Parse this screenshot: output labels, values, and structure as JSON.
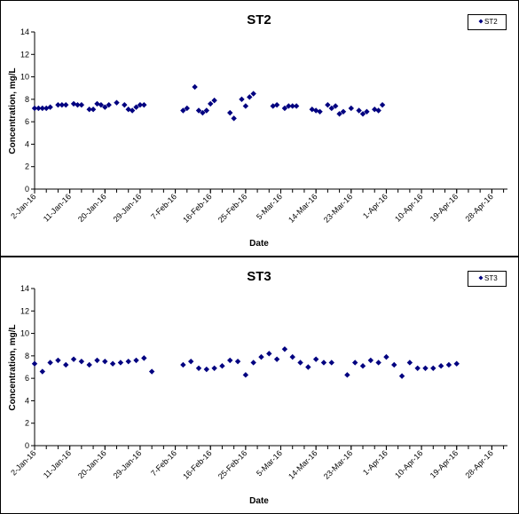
{
  "chart_data": [
    {
      "type": "scatter",
      "title": "ST2",
      "xlabel": "Date",
      "ylabel": "Concentration, mg/L",
      "ylim": [
        0,
        14
      ],
      "yticks": [
        0,
        2,
        4,
        6,
        8,
        10,
        12,
        14
      ],
      "xlim": [
        "2016-01-02",
        "2016-05-02"
      ],
      "xtick_labels": [
        "2-Jan-16",
        "11-Jan-16",
        "20-Jan-16",
        "29-Jan-16",
        "7-Feb-16",
        "16-Feb-16",
        "25-Feb-16",
        "5-Mar-16",
        "14-Mar-16",
        "23-Mar-16",
        "1-Apr-16",
        "10-Apr-16",
        "19-Apr-16",
        "28-Apr-16"
      ],
      "xtick_dates": [
        "2016-01-02",
        "2016-01-11",
        "2016-01-20",
        "2016-01-29",
        "2016-02-07",
        "2016-02-16",
        "2016-02-25",
        "2016-03-05",
        "2016-03-14",
        "2016-03-23",
        "2016-04-01",
        "2016-04-10",
        "2016-04-19",
        "2016-04-28"
      ],
      "grid": false,
      "legend": "top-right",
      "series": [
        {
          "name": "ST2",
          "color": "#000080",
          "marker": "diamond",
          "points": [
            {
              "x": "2016-01-02",
              "y": 7.2
            },
            {
              "x": "2016-01-03",
              "y": 7.2
            },
            {
              "x": "2016-01-04",
              "y": 7.2
            },
            {
              "x": "2016-01-05",
              "y": 7.2
            },
            {
              "x": "2016-01-06",
              "y": 7.3
            },
            {
              "x": "2016-01-08",
              "y": 7.5
            },
            {
              "x": "2016-01-09",
              "y": 7.5
            },
            {
              "x": "2016-01-10",
              "y": 7.5
            },
            {
              "x": "2016-01-12",
              "y": 7.6
            },
            {
              "x": "2016-01-13",
              "y": 7.5
            },
            {
              "x": "2016-01-14",
              "y": 7.5
            },
            {
              "x": "2016-01-16",
              "y": 7.1
            },
            {
              "x": "2016-01-17",
              "y": 7.1
            },
            {
              "x": "2016-01-18",
              "y": 7.6
            },
            {
              "x": "2016-01-19",
              "y": 7.5
            },
            {
              "x": "2016-01-20",
              "y": 7.3
            },
            {
              "x": "2016-01-21",
              "y": 7.5
            },
            {
              "x": "2016-01-23",
              "y": 7.7
            },
            {
              "x": "2016-01-25",
              "y": 7.5
            },
            {
              "x": "2016-01-26",
              "y": 7.1
            },
            {
              "x": "2016-01-27",
              "y": 7.0
            },
            {
              "x": "2016-01-28",
              "y": 7.3
            },
            {
              "x": "2016-01-29",
              "y": 7.5
            },
            {
              "x": "2016-01-30",
              "y": 7.5
            },
            {
              "x": "2016-02-09",
              "y": 7.0
            },
            {
              "x": "2016-02-10",
              "y": 7.2
            },
            {
              "x": "2016-02-12",
              "y": 9.1
            },
            {
              "x": "2016-02-13",
              "y": 7.0
            },
            {
              "x": "2016-02-14",
              "y": 6.8
            },
            {
              "x": "2016-02-15",
              "y": 7.0
            },
            {
              "x": "2016-02-16",
              "y": 7.6
            },
            {
              "x": "2016-02-17",
              "y": 7.9
            },
            {
              "x": "2016-02-21",
              "y": 6.8
            },
            {
              "x": "2016-02-22",
              "y": 6.3
            },
            {
              "x": "2016-02-24",
              "y": 8.0
            },
            {
              "x": "2016-02-25",
              "y": 7.4
            },
            {
              "x": "2016-02-26",
              "y": 8.2
            },
            {
              "x": "2016-02-27",
              "y": 8.5
            },
            {
              "x": "2016-03-03",
              "y": 7.4
            },
            {
              "x": "2016-03-04",
              "y": 7.5
            },
            {
              "x": "2016-03-06",
              "y": 7.2
            },
            {
              "x": "2016-03-07",
              "y": 7.4
            },
            {
              "x": "2016-03-08",
              "y": 7.4
            },
            {
              "x": "2016-03-09",
              "y": 7.4
            },
            {
              "x": "2016-03-13",
              "y": 7.1
            },
            {
              "x": "2016-03-14",
              "y": 7.0
            },
            {
              "x": "2016-03-15",
              "y": 6.9
            },
            {
              "x": "2016-03-17",
              "y": 7.5
            },
            {
              "x": "2016-03-18",
              "y": 7.2
            },
            {
              "x": "2016-03-19",
              "y": 7.4
            },
            {
              "x": "2016-03-20",
              "y": 6.7
            },
            {
              "x": "2016-03-21",
              "y": 6.9
            },
            {
              "x": "2016-03-23",
              "y": 7.2
            },
            {
              "x": "2016-03-25",
              "y": 7.0
            },
            {
              "x": "2016-03-26",
              "y": 6.7
            },
            {
              "x": "2016-03-27",
              "y": 6.9
            },
            {
              "x": "2016-03-29",
              "y": 7.1
            },
            {
              "x": "2016-03-30",
              "y": 7.0
            },
            {
              "x": "2016-03-31",
              "y": 7.5
            }
          ]
        }
      ]
    },
    {
      "type": "scatter",
      "title": "ST3",
      "xlabel": "Date",
      "ylabel": "Concentration, mg/L",
      "ylim": [
        0,
        14
      ],
      "yticks": [
        0,
        2,
        4,
        6,
        8,
        10,
        12,
        14
      ],
      "xlim": [
        "2016-01-02",
        "2016-05-02"
      ],
      "xtick_labels": [
        "2-Jan-16",
        "11-Jan-16",
        "20-Jan-16",
        "29-Jan-16",
        "7-Feb-16",
        "16-Feb-16",
        "25-Feb-16",
        "5-Mar-16",
        "14-Mar-16",
        "23-Mar-16",
        "1-Apr-16",
        "10-Apr-16",
        "19-Apr-16",
        "28-Apr-16"
      ],
      "xtick_dates": [
        "2016-01-02",
        "2016-01-11",
        "2016-01-20",
        "2016-01-29",
        "2016-02-07",
        "2016-02-16",
        "2016-02-25",
        "2016-03-05",
        "2016-03-14",
        "2016-03-23",
        "2016-04-01",
        "2016-04-10",
        "2016-04-19",
        "2016-04-28"
      ],
      "grid": false,
      "legend": "top-right",
      "series": [
        {
          "name": "ST3",
          "color": "#000080",
          "marker": "diamond",
          "points": [
            {
              "x": "2016-01-02",
              "y": 7.3
            },
            {
              "x": "2016-01-04",
              "y": 6.6
            },
            {
              "x": "2016-01-06",
              "y": 7.4
            },
            {
              "x": "2016-01-08",
              "y": 7.6
            },
            {
              "x": "2016-01-10",
              "y": 7.2
            },
            {
              "x": "2016-01-12",
              "y": 7.7
            },
            {
              "x": "2016-01-14",
              "y": 7.5
            },
            {
              "x": "2016-01-16",
              "y": 7.2
            },
            {
              "x": "2016-01-18",
              "y": 7.6
            },
            {
              "x": "2016-01-20",
              "y": 7.5
            },
            {
              "x": "2016-01-22",
              "y": 7.3
            },
            {
              "x": "2016-01-24",
              "y": 7.4
            },
            {
              "x": "2016-01-26",
              "y": 7.5
            },
            {
              "x": "2016-01-28",
              "y": 7.6
            },
            {
              "x": "2016-01-30",
              "y": 7.8
            },
            {
              "x": "2016-02-01",
              "y": 6.6
            },
            {
              "x": "2016-02-09",
              "y": 7.2
            },
            {
              "x": "2016-02-11",
              "y": 7.5
            },
            {
              "x": "2016-02-13",
              "y": 6.9
            },
            {
              "x": "2016-02-15",
              "y": 6.8
            },
            {
              "x": "2016-02-17",
              "y": 6.9
            },
            {
              "x": "2016-02-19",
              "y": 7.1
            },
            {
              "x": "2016-02-21",
              "y": 7.6
            },
            {
              "x": "2016-02-23",
              "y": 7.5
            },
            {
              "x": "2016-02-25",
              "y": 6.3
            },
            {
              "x": "2016-02-27",
              "y": 7.4
            },
            {
              "x": "2016-02-29",
              "y": 7.9
            },
            {
              "x": "2016-03-02",
              "y": 8.2
            },
            {
              "x": "2016-03-04",
              "y": 7.7
            },
            {
              "x": "2016-03-06",
              "y": 8.6
            },
            {
              "x": "2016-03-08",
              "y": 7.9
            },
            {
              "x": "2016-03-10",
              "y": 7.4
            },
            {
              "x": "2016-03-12",
              "y": 7.0
            },
            {
              "x": "2016-03-14",
              "y": 7.7
            },
            {
              "x": "2016-03-16",
              "y": 7.4
            },
            {
              "x": "2016-03-18",
              "y": 7.4
            },
            {
              "x": "2016-03-22",
              "y": 6.3
            },
            {
              "x": "2016-03-24",
              "y": 7.4
            },
            {
              "x": "2016-03-26",
              "y": 7.1
            },
            {
              "x": "2016-03-28",
              "y": 7.6
            },
            {
              "x": "2016-03-30",
              "y": 7.4
            },
            {
              "x": "2016-04-01",
              "y": 7.9
            },
            {
              "x": "2016-04-03",
              "y": 7.2
            },
            {
              "x": "2016-04-05",
              "y": 6.2
            },
            {
              "x": "2016-04-07",
              "y": 7.4
            },
            {
              "x": "2016-04-09",
              "y": 6.9
            },
            {
              "x": "2016-04-11",
              "y": 6.9
            },
            {
              "x": "2016-04-13",
              "y": 6.9
            },
            {
              "x": "2016-04-15",
              "y": 7.1
            },
            {
              "x": "2016-04-17",
              "y": 7.2
            },
            {
              "x": "2016-04-19",
              "y": 7.3
            }
          ]
        }
      ]
    }
  ]
}
